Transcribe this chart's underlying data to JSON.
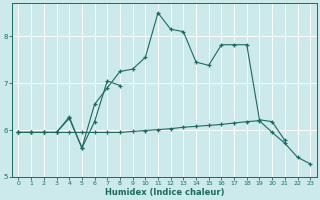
{
  "xlabel": "Humidex (Indice chaleur)",
  "background_color": "#cce9ec",
  "grid_color": "#ffffff",
  "line_color": "#1a6b60",
  "xlim": [
    -0.5,
    23.5
  ],
  "ylim": [
    5.0,
    8.7
  ],
  "yticks": [
    5,
    6,
    7,
    8
  ],
  "xticks": [
    0,
    1,
    2,
    3,
    4,
    5,
    6,
    7,
    8,
    9,
    10,
    11,
    12,
    13,
    14,
    15,
    16,
    17,
    18,
    19,
    20,
    21,
    22,
    23
  ],
  "line1_x": [
    0,
    1,
    2,
    3,
    4,
    5,
    6,
    7,
    8,
    9,
    10,
    11,
    12,
    13,
    14,
    15,
    16,
    17,
    18,
    19,
    20,
    21
  ],
  "line1_y": [
    5.95,
    5.95,
    5.95,
    5.95,
    6.25,
    5.62,
    6.55,
    6.9,
    7.25,
    7.3,
    7.55,
    8.5,
    8.15,
    8.1,
    7.45,
    7.38,
    7.82,
    7.82,
    7.82,
    6.22,
    6.18,
    5.78
  ],
  "line2_x": [
    0,
    1,
    2,
    3,
    4,
    5,
    6,
    7,
    8
  ],
  "line2_y": [
    5.95,
    5.95,
    5.95,
    5.95,
    6.28,
    5.62,
    6.18,
    7.05,
    6.95
  ],
  "line3_x": [
    0,
    1,
    2,
    3,
    4,
    5,
    6,
    7,
    8,
    9,
    10,
    11,
    12,
    13,
    14,
    15,
    16,
    17,
    18,
    19,
    20,
    21,
    22,
    23
  ],
  "line3_y": [
    5.95,
    5.95,
    5.95,
    5.95,
    5.95,
    5.95,
    5.95,
    5.95,
    5.95,
    5.97,
    5.99,
    6.01,
    6.03,
    6.06,
    6.08,
    6.1,
    6.12,
    6.15,
    6.18,
    6.2,
    5.95,
    5.72,
    5.42,
    5.28
  ]
}
